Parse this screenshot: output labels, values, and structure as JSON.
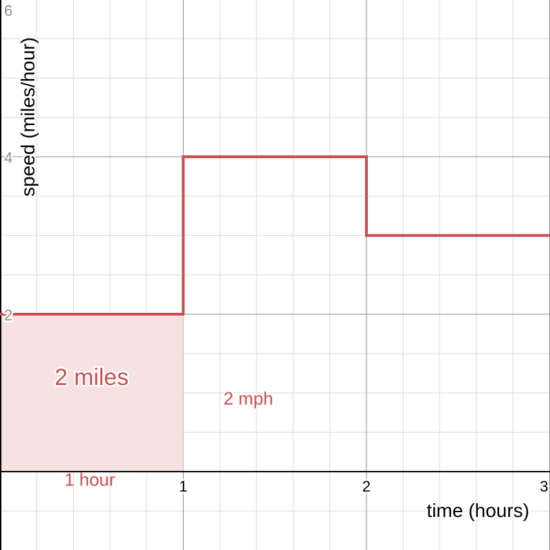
{
  "chart_data": {
    "type": "line",
    "title": "",
    "xlabel": "time (hours)",
    "ylabel": "speed (miles/hour)",
    "xlim": [
      0,
      3.0
    ],
    "ylim": [
      -0.5,
      6.0
    ],
    "x_ticks": [
      {
        "value": 1,
        "label": "1"
      },
      {
        "value": 2,
        "label": "2"
      },
      {
        "value": 3,
        "label": "3"
      }
    ],
    "y_ticks": [
      {
        "value": 2,
        "label": "2"
      },
      {
        "value": 4,
        "label": "4"
      },
      {
        "value": 6,
        "label": "6"
      }
    ],
    "minor_step_x": 0.2,
    "minor_step_y": 0.5,
    "grid": true,
    "series": [
      {
        "name": "speed",
        "color": "#c94f4f",
        "style": "step",
        "points": [
          [
            0,
            2
          ],
          [
            1,
            2
          ],
          [
            1,
            4
          ],
          [
            2,
            4
          ],
          [
            2,
            3
          ],
          [
            3.0,
            3
          ]
        ]
      }
    ],
    "shaded_region": {
      "x_from": 0,
      "x_to": 1,
      "y_from": 0,
      "y_to": 2,
      "color": "#f7e2e2"
    },
    "annotations": [
      {
        "id": "area",
        "text": "2 miles",
        "x": 0.5,
        "y": 1.1
      },
      {
        "id": "rate",
        "text": "2 mph",
        "x": 1.22,
        "y": 0.85
      },
      {
        "id": "duration",
        "text": "1 hour",
        "x": 0.49,
        "y": -0.18
      }
    ]
  }
}
